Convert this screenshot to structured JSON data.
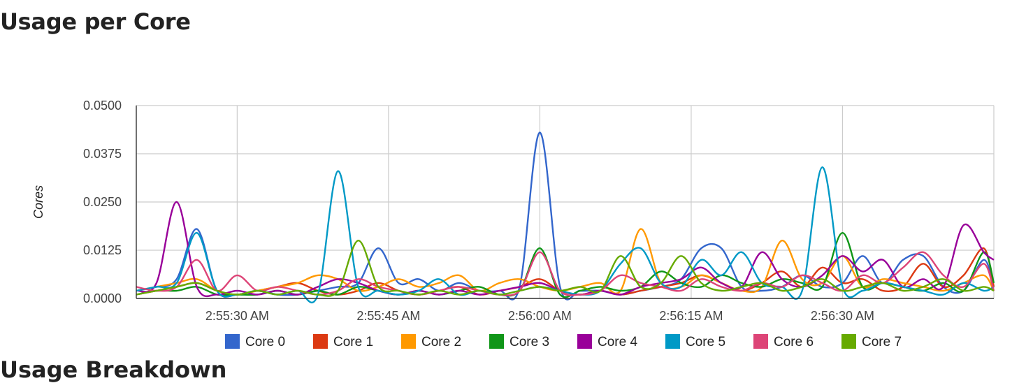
{
  "page": {
    "title": "Usage per Core",
    "next_heading": "Usage Breakdown"
  },
  "chart_data": {
    "type": "line",
    "title": "",
    "xlabel": "",
    "ylabel": "Cores",
    "ylim": [
      0,
      0.05
    ],
    "y_ticks": [
      "0.0000",
      "0.0125",
      "0.0250",
      "0.0375",
      "0.0500"
    ],
    "x_ticks": [
      "2:55:30 AM",
      "2:55:45 AM",
      "2:56:00 AM",
      "2:56:15 AM",
      "2:56:30 AM"
    ],
    "x": [
      "2:55:20",
      "2:55:22",
      "2:55:24",
      "2:55:26",
      "2:55:28",
      "2:55:30",
      "2:55:32",
      "2:55:34",
      "2:55:36",
      "2:55:38",
      "2:55:40",
      "2:55:42",
      "2:55:44",
      "2:55:46",
      "2:55:48",
      "2:55:50",
      "2:55:52",
      "2:55:54",
      "2:55:56",
      "2:55:58",
      "2:56:00",
      "2:56:02",
      "2:56:04",
      "2:56:06",
      "2:56:08",
      "2:56:10",
      "2:56:12",
      "2:56:14",
      "2:56:16",
      "2:56:18",
      "2:56:20",
      "2:56:22",
      "2:56:24",
      "2:56:26",
      "2:56:28",
      "2:56:30",
      "2:56:32",
      "2:56:34",
      "2:56:36",
      "2:56:38",
      "2:56:40",
      "2:56:42",
      "2:56:44",
      "2:56:45"
    ],
    "grid": true,
    "legend_position": "bottom",
    "series": [
      {
        "name": "Core 0",
        "color": "#3366cc",
        "values": [
          0.002,
          0.003,
          0.005,
          0.018,
          0.002,
          0.001,
          0.002,
          0.001,
          0.001,
          0.002,
          0.003,
          0.004,
          0.013,
          0.004,
          0.005,
          0.002,
          0.004,
          0.002,
          0.002,
          0.003,
          0.043,
          0.003,
          0.002,
          0.002,
          0.001,
          0.002,
          0.003,
          0.005,
          0.013,
          0.013,
          0.003,
          0.002,
          0.003,
          0.006,
          0.003,
          0.004,
          0.011,
          0.004,
          0.01,
          0.011,
          0.003,
          0.002,
          0.01,
          0.003
        ]
      },
      {
        "name": "Core 1",
        "color": "#dc3912",
        "values": [
          0.001,
          0.002,
          0.003,
          0.004,
          0.002,
          0.001,
          0.002,
          0.003,
          0.004,
          0.002,
          0.001,
          0.002,
          0.004,
          0.002,
          0.001,
          0.002,
          0.003,
          0.001,
          0.002,
          0.003,
          0.005,
          0.002,
          0.001,
          0.002,
          0.001,
          0.002,
          0.003,
          0.004,
          0.006,
          0.004,
          0.002,
          0.004,
          0.007,
          0.003,
          0.008,
          0.004,
          0.005,
          0.002,
          0.003,
          0.009,
          0.003,
          0.006,
          0.013,
          0.003
        ]
      },
      {
        "name": "Core 2",
        "color": "#ff9900",
        "values": [
          0.002,
          0.003,
          0.004,
          0.005,
          0.002,
          0.001,
          0.002,
          0.003,
          0.004,
          0.006,
          0.005,
          0.002,
          0.003,
          0.005,
          0.003,
          0.004,
          0.006,
          0.002,
          0.004,
          0.005,
          0.003,
          0.002,
          0.003,
          0.004,
          0.002,
          0.018,
          0.004,
          0.003,
          0.006,
          0.004,
          0.002,
          0.003,
          0.015,
          0.005,
          0.004,
          0.011,
          0.003,
          0.005,
          0.004,
          0.003,
          0.002,
          0.004,
          0.006,
          0.002
        ]
      },
      {
        "name": "Core 3",
        "color": "#109618",
        "values": [
          0.001,
          0.002,
          0.002,
          0.003,
          0.001,
          0.001,
          0.001,
          0.002,
          0.001,
          0.002,
          0.001,
          0.003,
          0.002,
          0.001,
          0.002,
          0.001,
          0.002,
          0.003,
          0.001,
          0.002,
          0.013,
          0.001,
          0.002,
          0.003,
          0.002,
          0.003,
          0.007,
          0.004,
          0.003,
          0.006,
          0.004,
          0.003,
          0.005,
          0.004,
          0.003,
          0.017,
          0.003,
          0.004,
          0.003,
          0.002,
          0.004,
          0.002,
          0.012,
          0.004
        ]
      },
      {
        "name": "Core 4",
        "color": "#990099",
        "values": [
          0.002,
          0.004,
          0.025,
          0.003,
          0.001,
          0.002,
          0.001,
          0.002,
          0.001,
          0.003,
          0.005,
          0.004,
          0.002,
          0.001,
          0.002,
          0.001,
          0.002,
          0.001,
          0.002,
          0.003,
          0.004,
          0.002,
          0.001,
          0.002,
          0.001,
          0.003,
          0.004,
          0.005,
          0.008,
          0.004,
          0.003,
          0.012,
          0.005,
          0.003,
          0.006,
          0.011,
          0.007,
          0.01,
          0.003,
          0.005,
          0.003,
          0.019,
          0.012,
          0.01
        ]
      },
      {
        "name": "Core 5",
        "color": "#0099c6",
        "values": [
          0.002,
          0.003,
          0.004,
          0.017,
          0.002,
          0.001,
          0.002,
          0.001,
          0.002,
          0.001,
          0.033,
          0.003,
          0.002,
          0.001,
          0.002,
          0.005,
          0.001,
          0.002,
          0.001,
          0.002,
          0.003,
          0.002,
          0.001,
          0.002,
          0.009,
          0.013,
          0.004,
          0.003,
          0.01,
          0.006,
          0.012,
          0.004,
          0.003,
          0.002,
          0.034,
          0.003,
          0.002,
          0.004,
          0.003,
          0.002,
          0.001,
          0.004,
          0.002,
          0.003
        ]
      },
      {
        "name": "Core 6",
        "color": "#dd4477",
        "values": [
          0.003,
          0.002,
          0.003,
          0.01,
          0.002,
          0.006,
          0.002,
          0.003,
          0.002,
          0.001,
          0.002,
          0.005,
          0.003,
          0.002,
          0.001,
          0.002,
          0.003,
          0.002,
          0.001,
          0.002,
          0.012,
          0.002,
          0.001,
          0.002,
          0.006,
          0.004,
          0.003,
          0.002,
          0.005,
          0.003,
          0.002,
          0.004,
          0.003,
          0.006,
          0.004,
          0.002,
          0.006,
          0.004,
          0.008,
          0.012,
          0.006,
          0.003,
          0.009,
          0.002
        ]
      },
      {
        "name": "Core 7",
        "color": "#66aa00",
        "values": [
          0.001,
          0.002,
          0.003,
          0.004,
          0.002,
          0.001,
          0.002,
          0.001,
          0.002,
          0.001,
          0.002,
          0.015,
          0.003,
          0.002,
          0.001,
          0.002,
          0.001,
          0.002,
          0.001,
          0.002,
          0.003,
          0.002,
          0.003,
          0.002,
          0.011,
          0.003,
          0.004,
          0.011,
          0.004,
          0.002,
          0.003,
          0.004,
          0.002,
          0.003,
          0.005,
          0.002,
          0.003,
          0.004,
          0.002,
          0.003,
          0.005,
          0.002,
          0.003,
          0.002
        ]
      }
    ]
  }
}
